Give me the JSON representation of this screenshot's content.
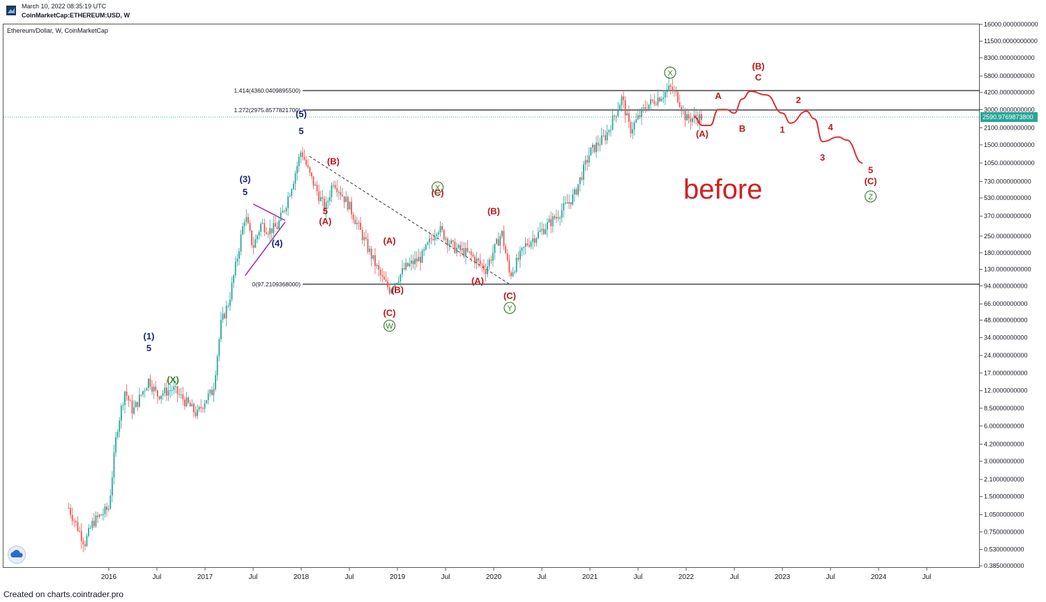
{
  "header": {
    "timestamp": "March 10, 2022 08:35:19 UTC",
    "symbol": "CoinMarketCap:ETHEREUM:USD, W"
  },
  "legend": "Ethereum/Dollar, W, CoinMarketCap",
  "footer": "Created on charts.cointrader.pro",
  "annotation": "before",
  "price_tag": "2590.9769873800",
  "colors": {
    "candle_up": "#26a69a",
    "candle_down": "#ef5350",
    "forecast": "#e03030",
    "wave_red": "#c0181b",
    "wave_blue": "#1a237e",
    "wave_green": "#3a7d2a",
    "wave_orange": "#c87b00",
    "triangle": "#9c27b0"
  },
  "chart_data": {
    "type": "candlestick",
    "title": "",
    "y_scale": "log",
    "y_ticks": [
      "16000.0000000000",
      "11500.0000000000",
      "8300.0000000000",
      "5800.0000000000",
      "4200.0000000000",
      "3000.0000000000",
      "2100.0000000000",
      "1500.0000000000",
      "1050.0000000000",
      "730.0000000000",
      "530.0000000000",
      "370.0000000000",
      "250.0000000000",
      "180.0000000000",
      "130.0000000000",
      "94.0000000000",
      "66.0000000000",
      "48.0000000000",
      "34.0000000000",
      "24.0000000000",
      "17.0000000000",
      "12.0000000000",
      "8.5000000000",
      "6.0000000000",
      "4.2000000000",
      "3.0000000000",
      "2.1000000000",
      "1.5000000000",
      "1.0500000000",
      "0.7500000000",
      "0.5300000000",
      "0.3850000000"
    ],
    "x_ticks": [
      "2016",
      "Jul",
      "2017",
      "Jul",
      "2018",
      "Jul",
      "2019",
      "Jul",
      "2020",
      "Jul",
      "2021",
      "Jul",
      "2022",
      "Jul",
      "2023",
      "Jul",
      "2024",
      "Jul"
    ],
    "levels": [
      {
        "label": "1.414(4360.0409895500)",
        "value": 4360.04
      },
      {
        "label": "1.272(2975.8577821700)",
        "value": 2975.86
      },
      {
        "label": "0(97.2109368000)",
        "value": 97.21
      }
    ],
    "current_price": 2590.98,
    "price_path": [
      {
        "date": "2015-08",
        "v": 1.2
      },
      {
        "date": "2015-10",
        "v": 0.6
      },
      {
        "date": "2015-11",
        "v": 0.9
      },
      {
        "date": "2016-01",
        "v": 1.2
      },
      {
        "date": "2016-02",
        "v": 5.5
      },
      {
        "date": "2016-03",
        "v": 12
      },
      {
        "date": "2016-04",
        "v": 8
      },
      {
        "date": "2016-06",
        "v": 15
      },
      {
        "date": "2016-07",
        "v": 11
      },
      {
        "date": "2016-09",
        "v": 12.5
      },
      {
        "date": "2016-11",
        "v": 9
      },
      {
        "date": "2016-12",
        "v": 7.5
      },
      {
        "date": "2017-01",
        "v": 10
      },
      {
        "date": "2017-02",
        "v": 12
      },
      {
        "date": "2017-03",
        "v": 45
      },
      {
        "date": "2017-04",
        "v": 70
      },
      {
        "date": "2017-06",
        "v": 380
      },
      {
        "date": "2017-07",
        "v": 200
      },
      {
        "date": "2017-08",
        "v": 320
      },
      {
        "date": "2017-09",
        "v": 280
      },
      {
        "date": "2017-10",
        "v": 300
      },
      {
        "date": "2017-11",
        "v": 450
      },
      {
        "date": "2017-12",
        "v": 750
      },
      {
        "date": "2018-01",
        "v": 1350
      },
      {
        "date": "2018-02",
        "v": 850
      },
      {
        "date": "2018-04",
        "v": 420
      },
      {
        "date": "2018-05",
        "v": 750
      },
      {
        "date": "2018-07",
        "v": 450
      },
      {
        "date": "2018-09",
        "v": 220
      },
      {
        "date": "2018-11",
        "v": 110
      },
      {
        "date": "2018-12",
        "v": 88
      },
      {
        "date": "2019-02",
        "v": 135
      },
      {
        "date": "2019-04",
        "v": 165
      },
      {
        "date": "2019-06",
        "v": 300
      },
      {
        "date": "2019-08",
        "v": 200
      },
      {
        "date": "2019-10",
        "v": 175
      },
      {
        "date": "2019-12",
        "v": 130
      },
      {
        "date": "2020-02",
        "v": 270
      },
      {
        "date": "2020-03",
        "v": 115
      },
      {
        "date": "2020-05",
        "v": 210
      },
      {
        "date": "2020-07",
        "v": 280
      },
      {
        "date": "2020-09",
        "v": 380
      },
      {
        "date": "2020-11",
        "v": 550
      },
      {
        "date": "2021-01",
        "v": 1300
      },
      {
        "date": "2021-03",
        "v": 1800
      },
      {
        "date": "2021-05",
        "v": 3800
      },
      {
        "date": "2021-06",
        "v": 2000
      },
      {
        "date": "2021-08",
        "v": 3200
      },
      {
        "date": "2021-10",
        "v": 4000
      },
      {
        "date": "2021-11",
        "v": 4600
      },
      {
        "date": "2021-12",
        "v": 3800
      },
      {
        "date": "2022-01",
        "v": 2500
      },
      {
        "date": "2022-03",
        "v": 2590
      }
    ],
    "forecast_path": [
      {
        "date": "2022-02",
        "v": 2600
      },
      {
        "date": "2022-03",
        "v": 2200
      },
      {
        "date": "2022-04",
        "v": 2200
      },
      {
        "date": "2022-05",
        "v": 3000
      },
      {
        "date": "2022-06",
        "v": 3000
      },
      {
        "date": "2022-07",
        "v": 2800
      },
      {
        "date": "2022-08",
        "v": 3700
      },
      {
        "date": "2022-09",
        "v": 4300
      },
      {
        "date": "2022-11",
        "v": 4000
      },
      {
        "date": "2023-01",
        "v": 2800
      },
      {
        "date": "2023-02",
        "v": 2300
      },
      {
        "date": "2023-04",
        "v": 2900
      },
      {
        "date": "2023-05",
        "v": 2500
      },
      {
        "date": "2023-06",
        "v": 1600
      },
      {
        "date": "2023-08",
        "v": 1750
      },
      {
        "date": "2023-09",
        "v": 1650
      },
      {
        "date": "2023-11",
        "v": 1050
      }
    ],
    "wave_labels": [
      {
        "t": "(5)",
        "date": "2018-01",
        "v": 2600,
        "c": "wave_blue"
      },
      {
        "t": "5",
        "date": "2018-01",
        "v": 1850,
        "c": "wave_blue"
      },
      {
        "t": "(3)",
        "date": "2017-06",
        "v": 720,
        "c": "wave_blue"
      },
      {
        "t": "5",
        "date": "2017-06",
        "v": 560,
        "c": "wave_blue"
      },
      {
        "t": "(4)",
        "date": "2017-10",
        "v": 205,
        "c": "wave_blue"
      },
      {
        "t": "(1)",
        "date": "2016-06",
        "v": 33,
        "c": "wave_blue"
      },
      {
        "t": "5",
        "date": "2016-06",
        "v": 26,
        "c": "wave_blue"
      },
      {
        "t": "(X)",
        "date": "2016-09",
        "v": 14,
        "c": "wave_green"
      },
      {
        "t": "(A)",
        "date": "2018-04",
        "v": 315,
        "c": "wave_red"
      },
      {
        "t": "(B)",
        "date": "2018-05",
        "v": 1020,
        "c": "wave_red"
      },
      {
        "t": "5",
        "date": "2018-04",
        "v": 385,
        "c": "wave_red"
      },
      {
        "t": "(A)",
        "date": "2018-12",
        "v": 215,
        "c": "wave_red"
      },
      {
        "t": "(B)",
        "date": "2019-01",
        "v": 82,
        "c": "wave_red"
      },
      {
        "t": "(C)",
        "date": "2018-12",
        "v": 52,
        "c": "wave_red"
      },
      {
        "t": "(C)",
        "date": "2019-06",
        "v": 550,
        "c": "wave_red"
      },
      {
        "t": "(A)",
        "date": "2019-11",
        "v": 98,
        "c": "wave_red"
      },
      {
        "t": "(B)",
        "date": "2020-01",
        "v": 385,
        "c": "wave_red"
      },
      {
        "t": "(C)",
        "date": "2020-03",
        "v": 73,
        "c": "wave_red"
      },
      {
        "t": "(A)",
        "date": "2022-03",
        "v": 1750,
        "c": "wave_red"
      },
      {
        "t": "(B)",
        "date": "2022-10",
        "v": 6600,
        "c": "wave_red"
      },
      {
        "t": "C",
        "date": "2022-10",
        "v": 5300,
        "c": "wave_red"
      },
      {
        "t": "A",
        "date": "2022-05",
        "v": 3700,
        "c": "wave_red"
      },
      {
        "t": "B",
        "date": "2022-08",
        "v": 1950,
        "c": "wave_red"
      },
      {
        "t": "1",
        "date": "2023-01",
        "v": 1900,
        "c": "wave_red"
      },
      {
        "t": "2",
        "date": "2023-03",
        "v": 3400,
        "c": "wave_red"
      },
      {
        "t": "3",
        "date": "2023-06",
        "v": 1100,
        "c": "wave_red"
      },
      {
        "t": "4",
        "date": "2023-07",
        "v": 2000,
        "c": "wave_red"
      },
      {
        "t": "5",
        "date": "2023-12",
        "v": 860,
        "c": "wave_red"
      },
      {
        "t": "(C)",
        "date": "2023-12",
        "v": 690,
        "c": "wave_red"
      }
    ],
    "circled_labels": [
      {
        "t": "X",
        "date": "2021-11",
        "v": 6200,
        "c": "wave_green"
      },
      {
        "t": "X",
        "date": "2019-06",
        "v": 650,
        "c": "wave_green"
      },
      {
        "t": "W",
        "date": "2018-12",
        "v": 43,
        "c": "wave_green"
      },
      {
        "t": "Y",
        "date": "2020-03",
        "v": 61,
        "c": "wave_green"
      },
      {
        "t": "Z",
        "date": "2023-12",
        "v": 545,
        "c": "wave_green"
      }
    ]
  }
}
